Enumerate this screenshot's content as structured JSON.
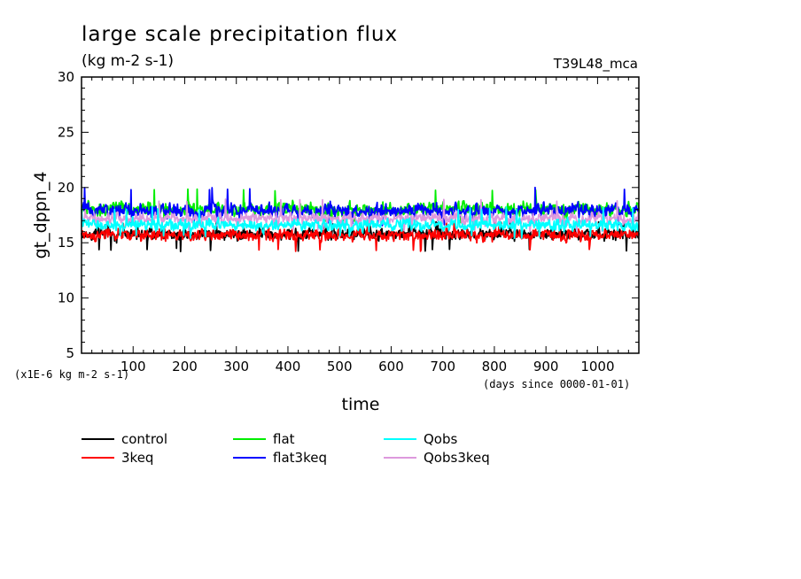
{
  "chart_data": {
    "type": "line",
    "title": "large scale precipitation flux",
    "units": "(kg m-2 s-1)",
    "run_label": "T39L48_mca",
    "ylabel": "gt_dppn_4",
    "xlabel": "time",
    "y_scale_note": "(x1E-6 kg m-2 s-1)",
    "x_units_note": "(days since 0000-01-01)",
    "xlim": [
      0,
      1080
    ],
    "ylim": [
      5,
      30
    ],
    "x_ticks": [
      100,
      200,
      300,
      400,
      500,
      600,
      700,
      800,
      900,
      1000
    ],
    "y_ticks": [
      5,
      10,
      15,
      20,
      25,
      30
    ],
    "legend_placement": "bottom",
    "series": [
      {
        "name": "control",
        "color": "#000000",
        "mean": 15.8,
        "amp": 0.45,
        "min": 14.2,
        "max": 16.9
      },
      {
        "name": "3keq",
        "color": "#ff0000",
        "mean": 15.7,
        "amp": 0.45,
        "min": 14.2,
        "max": 16.9
      },
      {
        "name": "flat",
        "color": "#00ee00",
        "mean": 18.0,
        "amp": 0.55,
        "min": 16.8,
        "max": 20.0
      },
      {
        "name": "flat3keq",
        "color": "#0000ff",
        "mean": 17.9,
        "amp": 0.55,
        "min": 16.5,
        "max": 20.0
      },
      {
        "name": "Qobs",
        "color": "#00ffff",
        "mean": 16.6,
        "amp": 0.45,
        "min": 15.4,
        "max": 18.3
      },
      {
        "name": "Qobs3keq",
        "color": "#dd99dd",
        "mean": 17.2,
        "amp": 0.45,
        "min": 16.0,
        "max": 19.0
      }
    ]
  }
}
